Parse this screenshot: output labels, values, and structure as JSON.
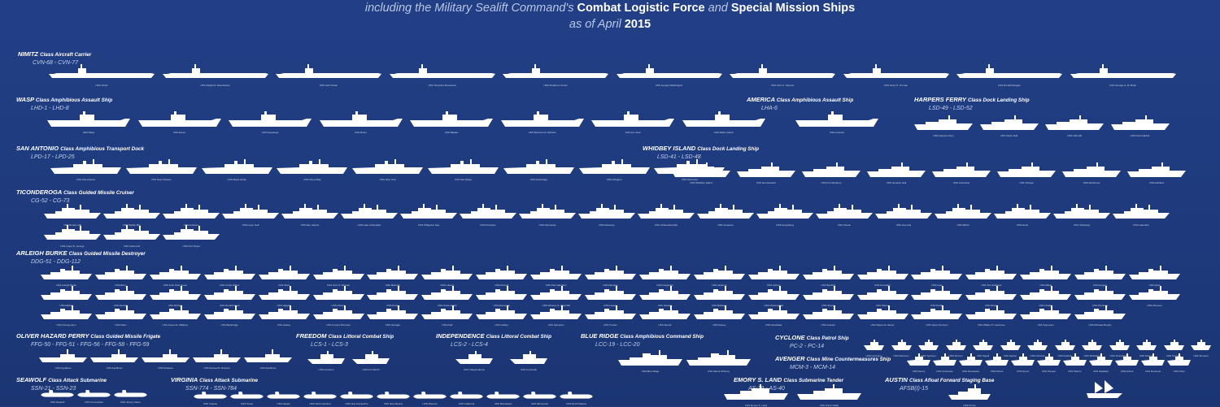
{
  "header": {
    "line1_pre": "including the Military Sealift Command's ",
    "line1_b1": "Combat Logistic Force",
    "line1_mid": " and ",
    "line1_b2": "Special Mission Ships",
    "line2_pre": "as of April ",
    "line2_year": "2015"
  },
  "colors": {
    "background": "#1f3a7d",
    "ship": "#ffffff"
  },
  "sections": {
    "nimitz": {
      "name": "NIMITZ",
      "cls": "Class Aircraft Carrier",
      "hulls": "CVN-68 - CVN-77"
    },
    "wasp": {
      "name": "WASP",
      "cls": "Class Amphibious Assault Ship",
      "hulls": "LHD-1 - LHD-8"
    },
    "america": {
      "name": "AMERICA",
      "cls": "Class Amphibious Assault Ship",
      "hulls": "LHA-6"
    },
    "harpers": {
      "name": "HARPERS FERRY",
      "cls": "Class Dock Landing Ship",
      "hulls": "LSD-49 - LSD-52"
    },
    "sanantonio": {
      "name": "SAN ANTONIO",
      "cls": "Class Amphibious Transport Dock",
      "hulls": "LPD-17 - LPD-25"
    },
    "whidbey": {
      "name": "WHIDBEY ISLAND",
      "cls": "Class Dock Landing Ship",
      "hulls": "LSD-41 - LSD-48"
    },
    "ticonderoga": {
      "name": "TICONDEROGA",
      "cls": "Class Guided Missile Cruiser",
      "hulls": "CG-52 - CG-73"
    },
    "arleigh": {
      "name": "ARLEIGH BURKE",
      "cls": "Class Guided Missile Destroyer",
      "hulls": "DDG-51 - DDG-112"
    },
    "perry": {
      "name": "OLIVER HAZARD PERRY",
      "cls": "Class Guided Missile Frigate",
      "hulls": "FFG-50 - FFG-51 - FFG-56 - FFG-58 - FFG-59"
    },
    "freedom": {
      "name": "FREEDOM",
      "cls": "Class Littoral Combat Ship",
      "hulls": "LCS-1 - LCS-3"
    },
    "independence": {
      "name": "INDEPENDENCE",
      "cls": "Class Littoral Combat Ship",
      "hulls": "LCS-2 - LCS-4"
    },
    "blueridge": {
      "name": "BLUE RIDGE",
      "cls": "Class Amphibious Command Ship",
      "hulls": "LCC-19 - LCC-20"
    },
    "cyclone": {
      "name": "CYCLONE",
      "cls": "Class Patrol Ship",
      "hulls": "PC-2 - PC-14"
    },
    "avenger": {
      "name": "AVENGER",
      "cls": "Class Mine Countermeasures Ship",
      "hulls": "MCM-3 - MCM-14"
    },
    "seawolf": {
      "name": "SEAWOLF",
      "cls": "Class Attack Submarine",
      "hulls": "SSN-21 - SSN-23"
    },
    "virginia": {
      "name": "VIRGINIA",
      "cls": "Class Attack Submarine",
      "hulls": "SSN-774 - SSN-784"
    },
    "emory": {
      "name": "EMORY S. LAND",
      "cls": "Class Submarine Tender",
      "hulls": "AS-39 - AS-40"
    },
    "austin": {
      "name": "AUSTIN",
      "cls": "Class Afloat Forward Staging Base",
      "hulls": "AFSB(I)-15"
    }
  },
  "fleet": {
    "nimitz": [
      "USS Nimitz",
      "USS Dwight D. Eisenhower",
      "USS Carl Vinson",
      "USS Theodore Roosevelt",
      "USS Abraham Lincoln",
      "USS George Washington",
      "USS John C. Stennis",
      "USS Harry S. Truman",
      "USS Ronald Reagan",
      "USS George H. W. Bush"
    ],
    "wasp": [
      "USS Wasp",
      "USS Essex",
      "USS Kearsarge",
      "USS Boxer",
      "USS Bataan",
      "USS Bonhomme Richard",
      "USS Iwo Jima",
      "USS Makin Island"
    ],
    "america": [
      "USS America"
    ],
    "harpers": [
      "USS Harpers Ferry",
      "USS Carter Hall",
      "USS Oak Hill",
      "USS Pearl Harbor"
    ],
    "sanantonio": [
      "USS San Antonio",
      "USS New Orleans",
      "USS Mesa Verde",
      "USS Green Bay",
      "USS New York",
      "USS San Diego",
      "USS Anchorage",
      "USS Arlington",
      "USS Somerset"
    ],
    "whidbey": [
      "USS Whidbey Island",
      "USS Germantown",
      "USS Fort McHenry",
      "USS Gunston Hall",
      "USS Comstock",
      "USS Tortuga",
      "USS Rushmore",
      "USS Ashland"
    ],
    "ticonderoga": [
      "USS Bunker Hill",
      "USS Mobile Bay",
      "USS Antietam",
      "USS Leyte Gulf",
      "USS San Jacinto",
      "USS Lake Champlain",
      "USS Philippine Sea",
      "USS Princeton",
      "USS Normandy",
      "USS Monterey",
      "USS Chancellorsville",
      "USS Cowpens",
      "USS Gettysburg",
      "USS Chosin",
      "USS Hue City",
      "USS Shiloh",
      "USS Anzio",
      "USS Vicksburg",
      "USS Lake Erie",
      "USS Cape St. George",
      "USS Vella Gulf",
      "USS Port Royal"
    ],
    "arleigh": [
      "USS Arleigh Burke",
      "USS Barry",
      "USS John Paul Jones",
      "USS Curtis Wilbur",
      "USS Stout",
      "USS John S. McCain",
      "USS Mitscher",
      "USS Laboon",
      "USS Russell",
      "USS Paul Hamilton",
      "USS Ramage",
      "USS Fitzgerald",
      "USS Stethem",
      "USS Carney",
      "USS Benfold",
      "USS Gonzalez",
      "USS Cole",
      "USS The Sullivans",
      "USS Milius",
      "USS Hopper",
      "USS Ross",
      "USS Mahan",
      "USS Decatur",
      "USS McFaul",
      "USS Donald Cook",
      "USS Higgins",
      "USS O'Kane",
      "USS Porter",
      "USS Oscar Austin",
      "USS Roosevelt",
      "USS Winston S. Churchill",
      "USS Lassen",
      "USS Howard",
      "USS Bulkeley",
      "USS McCampbell",
      "USS Shoup",
      "USS Mason",
      "USS Preble",
      "USS Mustin",
      "USS Chafee",
      "USS Pinckney",
      "USS Momsen",
      "USS Chung-Hoon",
      "USS Nitze",
      "USS James E. Williams",
      "USS Bainbridge",
      "USS Halsey",
      "USS Forrest Sherman",
      "USS Farragut",
      "USS Kidd",
      "USS Gridley",
      "USS Sampson",
      "USS Truxtun",
      "USS Sterett",
      "USS Dewey",
      "USS Stockdale",
      "USS Gravely",
      "USS Wayne E. Meyer",
      "USS Jason Dunham",
      "USS William P. Lawrence",
      "USS Spruance",
      "USS Michael Murphy"
    ],
    "perry": [
      "USS Ingraham",
      "USS Kauffman",
      "USS Simpson",
      "USS Samuel B. Roberts",
      "USS Kauffman"
    ],
    "freedom": [
      "USS Freedom",
      "USS Fort Worth"
    ],
    "independence": [
      "USS Independence",
      "USS Coronado"
    ],
    "blueridge": [
      "USS Blue Ridge",
      "USS Mount Whitney"
    ],
    "cyclone": [
      "USS Hurricane",
      "USS Monsoon",
      "USS Typhoon",
      "USS Sirocco",
      "USS Squall",
      "USS Zephyr",
      "USS Chinook",
      "USS Firebolt",
      "USS Whirlwind",
      "USS Thunderbolt",
      "USS Shamal",
      "USS Tornado",
      "USS Tempest"
    ],
    "avenger": [
      "USS Sentry",
      "USS Champion",
      "USS Devastator",
      "USS Patriot",
      "USS Scout",
      "USS Pioneer",
      "USS Warrior",
      "USS Gladiator",
      "USS Ardent",
      "USS Dextrous",
      "USS Chief"
    ],
    "seawolf": [
      "USS Seawolf",
      "USS Connecticut",
      "USS Jimmy Carter"
    ],
    "virginia": [
      "USS Virginia",
      "USS Texas",
      "USS Hawaii",
      "USS North Carolina",
      "USS New Hampshire",
      "USS New Mexico",
      "USS Missouri",
      "USS California",
      "USS Mississippi",
      "USS Minnesota",
      "USS North Dakota"
    ],
    "emory": [
      "USS Emory S. Land",
      "USS Frank Cable"
    ],
    "austin": [
      "USS Ponce"
    ]
  }
}
